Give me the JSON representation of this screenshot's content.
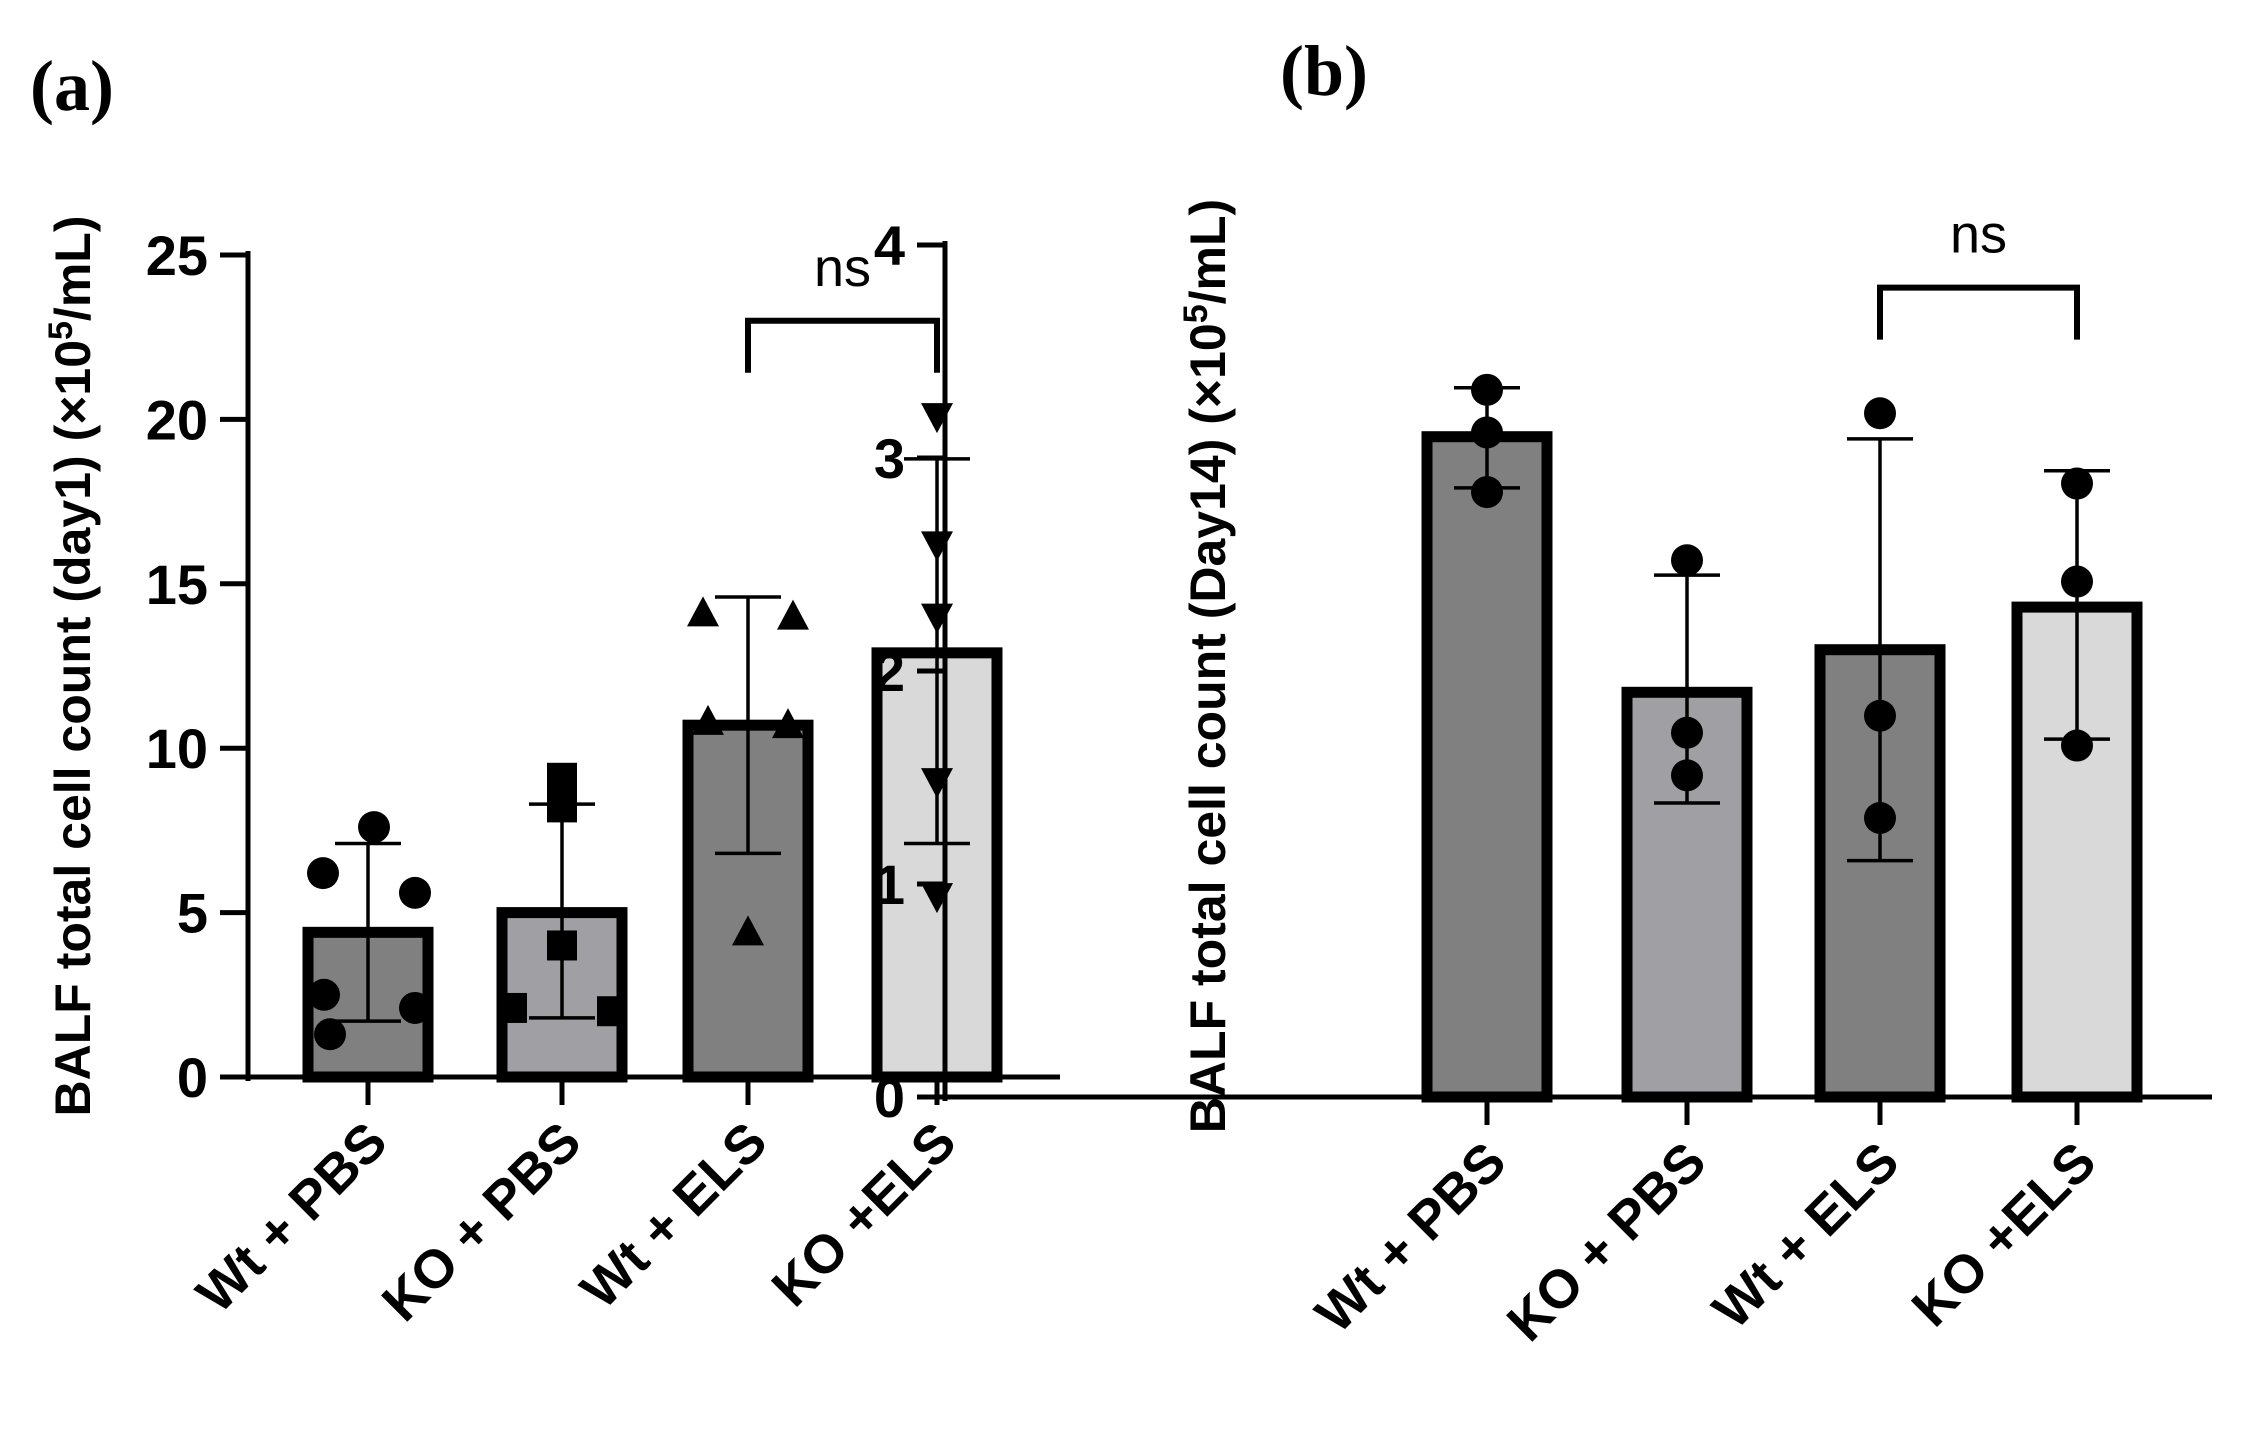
{
  "chart_data": [
    {
      "type": "bar",
      "panel": "(a)",
      "ylabel_main": "BALF total cell count  (day1) (×10",
      "ylabel_sup": "5",
      "ylabel_tail": "/mL)",
      "ylim": [
        0,
        25
      ],
      "yticks": [
        0,
        5,
        10,
        15,
        20,
        25
      ],
      "categories": [
        "Wt + PBS",
        "KO + PBS",
        "Wt + ELS",
        "KO +ELS"
      ],
      "values": [
        4.4,
        5.0,
        10.7,
        12.9
      ],
      "error_upper": [
        7.1,
        8.3,
        14.6,
        18.8
      ],
      "error_lower": [
        1.7,
        1.8,
        6.8,
        7.1
      ],
      "points": [
        [
          7.6,
          6.2,
          5.6,
          2.5,
          2.1,
          1.3
        ],
        [
          9.1,
          8.2,
          4.0,
          2.1,
          2.0
        ],
        [
          14.1,
          14.0,
          10.8,
          10.7,
          4.4
        ],
        [
          20.1,
          16.2,
          14.0,
          9.0,
          5.5
        ]
      ],
      "markers": [
        "circle",
        "square",
        "triangle-up",
        "triangle-down"
      ],
      "bar_colors": [
        "#808080",
        "#a0a0a4",
        "#808080",
        "#d9d9d9"
      ],
      "comparison": {
        "from": 2,
        "to": 3,
        "label": "ns",
        "y": 23
      }
    },
    {
      "type": "bar",
      "panel": "(b)",
      "ylabel_main": "BALF total cell count  (Day14) (×10",
      "ylabel_sup": "5",
      "ylabel_tail": "/mL)",
      "ylim": [
        0,
        4
      ],
      "yticks": [
        0,
        1,
        2,
        3,
        4
      ],
      "categories": [
        "Wt + PBS",
        "KO + PBS",
        "Wt + ELS",
        "KO +ELS"
      ],
      "values": [
        3.1,
        1.9,
        2.1,
        2.3
      ],
      "error_upper": [
        3.33,
        2.45,
        3.09,
        2.94
      ],
      "error_lower": [
        2.86,
        1.38,
        1.11,
        1.68
      ],
      "points": [
        [
          3.32,
          3.12,
          2.84
        ],
        [
          2.52,
          1.71,
          1.51
        ],
        [
          3.21,
          1.79,
          1.31
        ],
        [
          2.88,
          2.42,
          1.65
        ]
      ],
      "markers": [
        "circle",
        "circle",
        "circle",
        "circle"
      ],
      "bar_colors": [
        "#808080",
        "#a0a0a4",
        "#808080",
        "#d9d9d9"
      ],
      "comparison": {
        "from": 2,
        "to": 3,
        "label": "ns",
        "y": 3.8
      }
    }
  ]
}
